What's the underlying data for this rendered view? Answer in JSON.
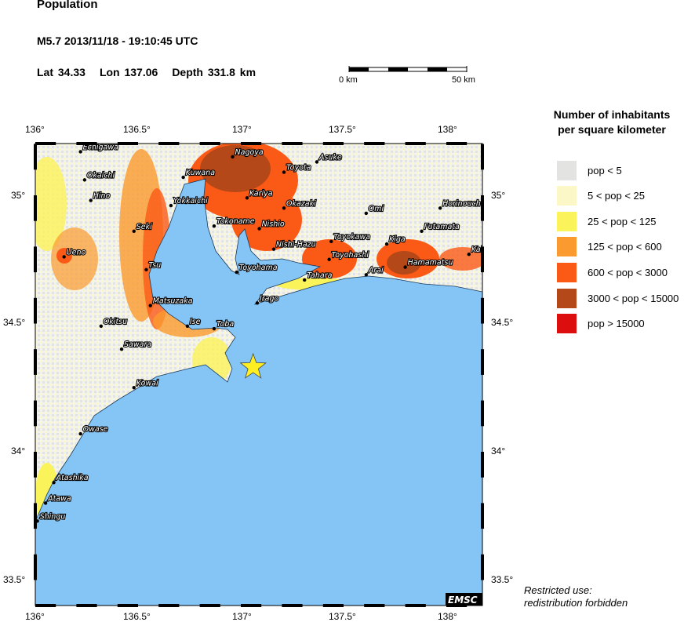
{
  "header": {
    "title": "Population",
    "event": "M5.7  2013/11/18 - 19:10:45 UTC",
    "lat": "Lat 34.33",
    "lon": "Lon 137.06",
    "depth": "Depth 331.8 km"
  },
  "scale_bar": {
    "start_label": "0 km",
    "end_label": "50 km"
  },
  "axes": {
    "lon_ticks": [
      "136°",
      "136.5°",
      "137°",
      "137.5°",
      "138°"
    ],
    "lat_ticks": [
      "35°",
      "34.5°",
      "34°",
      "33.5°"
    ],
    "lon_range": [
      136,
      138.18
    ],
    "lat_range": [
      33.4,
      35.2
    ]
  },
  "epicenter": {
    "lat": 34.33,
    "lon": 137.06,
    "symbol": "star",
    "color": "#ffee22"
  },
  "colors": {
    "ocean": "#85c5f6",
    "border": "#000000"
  },
  "cities": [
    {
      "name": "Echigawa",
      "lon": 136.22,
      "lat": 35.17
    },
    {
      "name": "Okaichi",
      "lon": 136.24,
      "lat": 35.06
    },
    {
      "name": "Hino",
      "lon": 136.27,
      "lat": 34.98
    },
    {
      "name": "Kuwana",
      "lon": 136.72,
      "lat": 35.07
    },
    {
      "name": "Nagoya",
      "lon": 136.96,
      "lat": 35.15
    },
    {
      "name": "Asuke",
      "lon": 137.37,
      "lat": 35.13
    },
    {
      "name": "Toyota",
      "lon": 137.21,
      "lat": 35.09
    },
    {
      "name": "Yokkaichi",
      "lon": 136.66,
      "lat": 34.96
    },
    {
      "name": "Kariya",
      "lon": 137.03,
      "lat": 34.99
    },
    {
      "name": "Okazaki",
      "lon": 137.21,
      "lat": 34.95
    },
    {
      "name": "Omi",
      "lon": 137.61,
      "lat": 34.93
    },
    {
      "name": "Horinouch",
      "lon": 137.97,
      "lat": 34.95
    },
    {
      "name": "Seki",
      "lon": 136.48,
      "lat": 34.86
    },
    {
      "name": "Tokoname",
      "lon": 136.87,
      "lat": 34.88
    },
    {
      "name": "Nishio",
      "lon": 137.09,
      "lat": 34.87
    },
    {
      "name": "Futamata",
      "lon": 137.88,
      "lat": 34.86
    },
    {
      "name": "Nishi-Hazu",
      "lon": 137.16,
      "lat": 34.79
    },
    {
      "name": "Toyokawa",
      "lon": 137.44,
      "lat": 34.82
    },
    {
      "name": "Kiga",
      "lon": 137.71,
      "lat": 34.81
    },
    {
      "name": "Ueno",
      "lon": 136.14,
      "lat": 34.76
    },
    {
      "name": "Kak",
      "lon": 138.11,
      "lat": 34.77
    },
    {
      "name": "Tsu",
      "lon": 136.54,
      "lat": 34.71
    },
    {
      "name": "Toyohashi",
      "lon": 137.43,
      "lat": 34.75
    },
    {
      "name": "Hamamatsu",
      "lon": 137.8,
      "lat": 34.72
    },
    {
      "name": "Toyohama",
      "lon": 136.98,
      "lat": 34.7
    },
    {
      "name": "Tahara",
      "lon": 137.31,
      "lat": 34.67
    },
    {
      "name": "Arai",
      "lon": 137.61,
      "lat": 34.69
    },
    {
      "name": "Matsuzaka",
      "lon": 136.56,
      "lat": 34.57
    },
    {
      "name": "Irago",
      "lon": 137.08,
      "lat": 34.58
    },
    {
      "name": "Okitsu",
      "lon": 136.32,
      "lat": 34.49
    },
    {
      "name": "Ise",
      "lon": 136.74,
      "lat": 34.49
    },
    {
      "name": "Toba",
      "lon": 136.87,
      "lat": 34.48
    },
    {
      "name": "Sawara",
      "lon": 136.42,
      "lat": 34.4
    },
    {
      "name": "Kowai",
      "lon": 136.48,
      "lat": 34.25
    },
    {
      "name": "Owase",
      "lon": 136.22,
      "lat": 34.07
    },
    {
      "name": "Atashika",
      "lon": 136.09,
      "lat": 33.88
    },
    {
      "name": "Atawa",
      "lon": 136.05,
      "lat": 33.8
    },
    {
      "name": "Shingu",
      "lon": 136.01,
      "lat": 33.73
    }
  ],
  "legend": {
    "title_line1": "Number of inhabitants",
    "title_line2": "per square kilometer",
    "items": [
      {
        "label": "pop < 5",
        "color": "#e3e4e2"
      },
      {
        "label": "5 < pop < 25",
        "color": "#fbf7c6"
      },
      {
        "label": "25 < pop < 125",
        "color": "#fbf35a"
      },
      {
        "label": "125 < pop < 600",
        "color": "#fb9a2e"
      },
      {
        "label": "600 < pop < 3000",
        "color": "#fb5a16"
      },
      {
        "label": "3000 < pop < 15000",
        "color": "#b44818"
      },
      {
        "label": "pop > 15000",
        "color": "#dc0e0e"
      }
    ]
  },
  "logo": "EMSC",
  "note": {
    "line1": "Restricted use:",
    "line2": "redistribution forbidden"
  }
}
